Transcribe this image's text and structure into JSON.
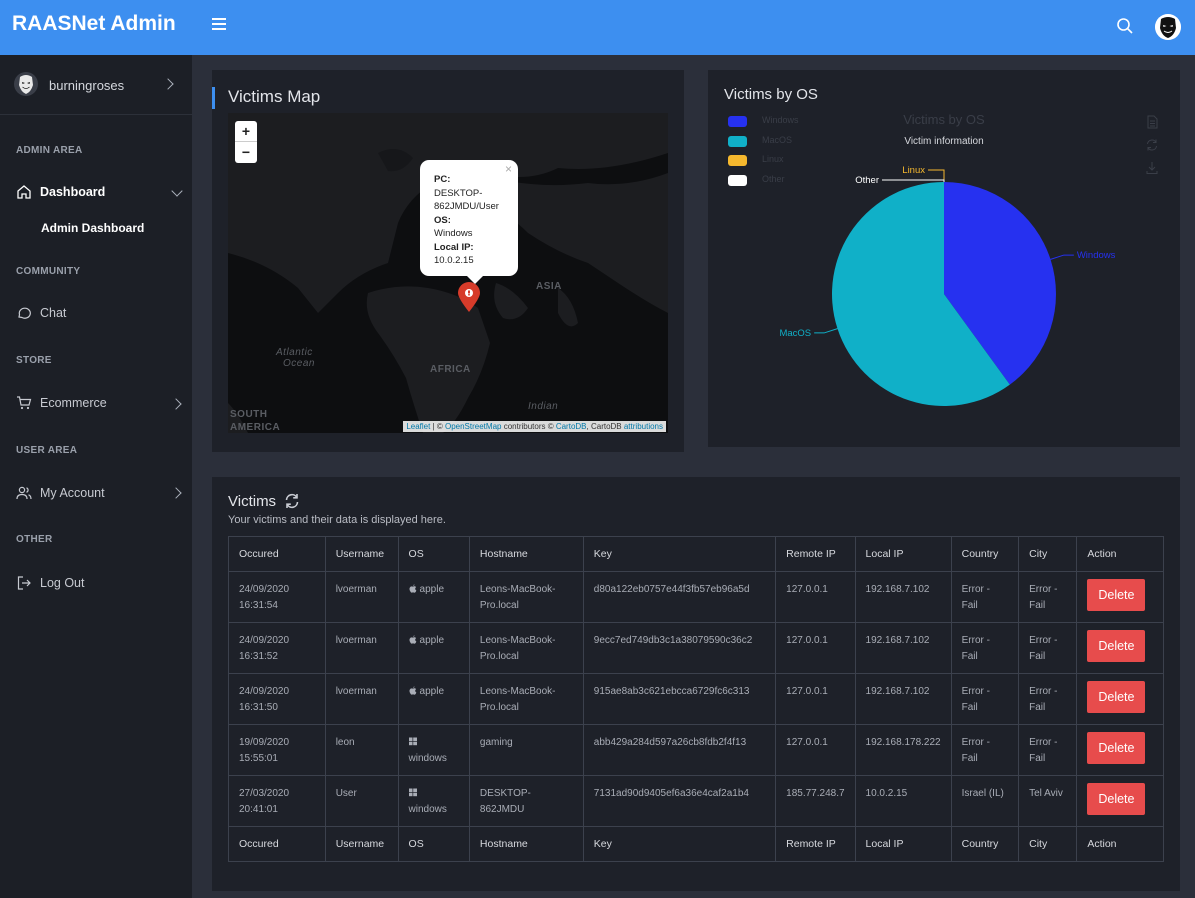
{
  "app": {
    "title": "RAASNet Admin"
  },
  "sidebar": {
    "user": "burningroses",
    "sections": {
      "admin": "ADMIN AREA",
      "community": "COMMUNITY",
      "store": "STORE",
      "user_area": "USER AREA",
      "other": "OTHER"
    },
    "items": {
      "dashboard": "Dashboard",
      "admin_dashboard": "Admin Dashboard",
      "chat": "Chat",
      "ecommerce": "Ecommerce",
      "my_account": "My Account",
      "logout": "Log Out"
    }
  },
  "map": {
    "title": "Victims Map",
    "zoom_in": "+",
    "zoom_out": "−",
    "popup": {
      "pc_label": "PC:",
      "pc_value_1": "DESKTOP-",
      "pc_value_2": "862JMDU/User",
      "os_label": "OS:",
      "os_value": "Windows",
      "ip_label": "Local IP:",
      "ip_value": "10.0.2.15",
      "close": "×"
    },
    "labels": {
      "asia": "ASIA",
      "africa": "AFRICA",
      "atlantic_1": "Atlantic",
      "atlantic_2": "Ocean",
      "south_1": "SOUTH",
      "south_2": "AMERICA",
      "indian": "Indian"
    },
    "attribution": {
      "leaflet": "Leaflet",
      "sep": " | © ",
      "osm": "OpenStreetMap",
      "contrib": " contributors © ",
      "cartodb": "CartoDB",
      "tail": ", CartoDB ",
      "attributions": "attributions"
    }
  },
  "os_chart": {
    "card_title": "Victims by OS",
    "watermark_title": "Victims by OS",
    "subtitle": "Victim information",
    "legend": [
      "Windows",
      "MacOS",
      "Linux",
      "Other"
    ]
  },
  "chart_data": {
    "type": "pie",
    "title": "Victims by OS",
    "subtitle": "Victim information",
    "categories": [
      "Windows",
      "MacOS",
      "Linux",
      "Other"
    ],
    "values": [
      2,
      3,
      0,
      0
    ],
    "colors": [
      "#2631f0",
      "#10b0c8",
      "#f5b82e",
      "#ffffff"
    ],
    "legend_position": "top-left"
  },
  "victims": {
    "title": "Victims",
    "subtitle": "Your victims and their data is displayed here.",
    "columns": [
      "Occured",
      "Username",
      "OS",
      "Hostname",
      "Key",
      "Remote IP",
      "Local IP",
      "Country",
      "City",
      "Action"
    ],
    "delete_label": "Delete",
    "rows": [
      {
        "occured_date": "24/09/2020",
        "occured_time": "16:31:54",
        "username": "lvoerman",
        "os": "apple",
        "os_icon": "apple-icon",
        "host_1": "Leons-MacBook-",
        "host_2": "Pro.local",
        "key": "d80a122eb0757e44f3fb57eb96a5d",
        "remote_ip": "127.0.0.1",
        "local_ip": "192.168.7.102",
        "country_1": "Error -",
        "country_2": "Fail",
        "city_1": "Error -",
        "city_2": "Fail"
      },
      {
        "occured_date": "24/09/2020",
        "occured_time": "16:31:52",
        "username": "lvoerman",
        "os": "apple",
        "os_icon": "apple-icon",
        "host_1": "Leons-MacBook-",
        "host_2": "Pro.local",
        "key": "9ecc7ed749db3c1a38079590c36c2",
        "remote_ip": "127.0.0.1",
        "local_ip": "192.168.7.102",
        "country_1": "Error -",
        "country_2": "Fail",
        "city_1": "Error -",
        "city_2": "Fail"
      },
      {
        "occured_date": "24/09/2020",
        "occured_time": "16:31:50",
        "username": "lvoerman",
        "os": "apple",
        "os_icon": "apple-icon",
        "host_1": "Leons-MacBook-",
        "host_2": "Pro.local",
        "key": "915ae8ab3c621ebcca6729fc6c313",
        "remote_ip": "127.0.0.1",
        "local_ip": "192.168.7.102",
        "country_1": "Error -",
        "country_2": "Fail",
        "city_1": "Error -",
        "city_2": "Fail"
      },
      {
        "occured_date": "19/09/2020",
        "occured_time": "15:55:01",
        "username": "leon",
        "os": "windows",
        "os_icon": "windows-icon",
        "host_1": "gaming",
        "host_2": "",
        "key": "abb429a284d597a26cb8fdb2f4f13",
        "remote_ip": "127.0.0.1",
        "local_ip": "192.168.178.222",
        "country_1": "Error -",
        "country_2": "Fail",
        "city_1": "Error -",
        "city_2": "Fail"
      },
      {
        "occured_date": "27/03/2020",
        "occured_time": "20:41:01",
        "username": "User",
        "os": "windows",
        "os_icon": "windows-icon",
        "host_1": "DESKTOP-",
        "host_2": "862JMDU",
        "key": "7131ad90d9405ef6a36e4caf2a1b4",
        "remote_ip": "185.77.248.7",
        "local_ip": "10.0.2.15",
        "country_1": "Israel (IL)",
        "country_2": "",
        "city_1": "Tel Aviv",
        "city_2": ""
      }
    ]
  }
}
